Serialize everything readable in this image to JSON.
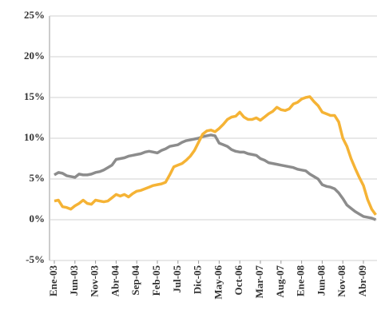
{
  "chart_data": {
    "type": "line",
    "categories": [
      "Ene-03",
      null,
      null,
      null,
      null,
      "Jun-03",
      null,
      null,
      null,
      null,
      "Nov-03",
      null,
      null,
      null,
      null,
      "Abr-04",
      null,
      null,
      null,
      null,
      "Sep-04",
      null,
      null,
      null,
      null,
      "Feb-05",
      null,
      null,
      null,
      null,
      "Jul-05",
      null,
      null,
      null,
      null,
      "Dic-05",
      null,
      null,
      null,
      null,
      "May-06",
      null,
      null,
      null,
      null,
      "Oct-06",
      null,
      null,
      null,
      null,
      "Mar-07",
      null,
      null,
      null,
      null,
      "Aug-07",
      null,
      null,
      null,
      null,
      "Ene-08",
      null,
      null,
      null,
      null,
      "Jun-08",
      null,
      null,
      null,
      null,
      "Nov-08",
      null,
      null,
      null,
      null,
      "Abr-09",
      null,
      null,
      null
    ],
    "series": [
      {
        "color": "#8c8c8c",
        "values": [
          5.5,
          5.8,
          5.7,
          5.4,
          5.3,
          5.2,
          5.6,
          5.5,
          5.5,
          5.6,
          5.8,
          5.9,
          6.1,
          6.4,
          6.7,
          7.4,
          7.5,
          7.6,
          7.8,
          7.9,
          8.0,
          8.1,
          8.3,
          8.4,
          8.3,
          8.2,
          8.5,
          8.7,
          9.0,
          9.1,
          9.2,
          9.5,
          9.7,
          9.8,
          9.9,
          10.0,
          10.2,
          10.3,
          10.4,
          10.3,
          9.4,
          9.2,
          9.0,
          8.6,
          8.4,
          8.3,
          8.3,
          8.1,
          8.0,
          7.9,
          7.5,
          7.3,
          7.0,
          6.9,
          6.8,
          6.7,
          6.6,
          6.5,
          6.4,
          6.2,
          6.1,
          6.0,
          5.6,
          5.3,
          5.0,
          4.3,
          4.1,
          4.0,
          3.8,
          3.3,
          2.6,
          1.8,
          1.4,
          1.0,
          0.7,
          0.4,
          0.3,
          0.2,
          0.0
        ]
      },
      {
        "color": "#f5b335",
        "values": [
          2.3,
          2.4,
          1.6,
          1.5,
          1.3,
          1.7,
          2.0,
          2.4,
          2.0,
          1.9,
          2.4,
          2.3,
          2.2,
          2.3,
          2.7,
          3.1,
          2.9,
          3.1,
          2.8,
          3.2,
          3.5,
          3.6,
          3.8,
          4.0,
          4.2,
          4.3,
          4.4,
          4.6,
          5.5,
          6.5,
          6.7,
          6.9,
          7.3,
          7.8,
          8.5,
          9.5,
          10.5,
          10.9,
          11.0,
          10.8,
          11.2,
          11.7,
          12.3,
          12.6,
          12.7,
          13.2,
          12.6,
          12.3,
          12.3,
          12.5,
          12.2,
          12.6,
          13.0,
          13.3,
          13.8,
          13.5,
          13.4,
          13.6,
          14.2,
          14.4,
          14.8,
          15.0,
          15.1,
          14.5,
          14.0,
          13.2,
          13.0,
          12.8,
          12.8,
          12.0,
          10.0,
          9.0,
          7.5,
          6.3,
          5.2,
          4.2,
          2.5,
          1.3,
          0.6
        ]
      }
    ],
    "ylim": [
      -5,
      25
    ],
    "yticks": [
      {
        "value": -5,
        "label": "-5%"
      },
      {
        "value": 0,
        "label": "0%"
      },
      {
        "value": 5,
        "label": "5%"
      },
      {
        "value": 10,
        "label": "10%"
      },
      {
        "value": 15,
        "label": "15%"
      },
      {
        "value": 20,
        "label": "20%"
      },
      {
        "value": 25,
        "label": "25%"
      }
    ],
    "grid": true
  }
}
